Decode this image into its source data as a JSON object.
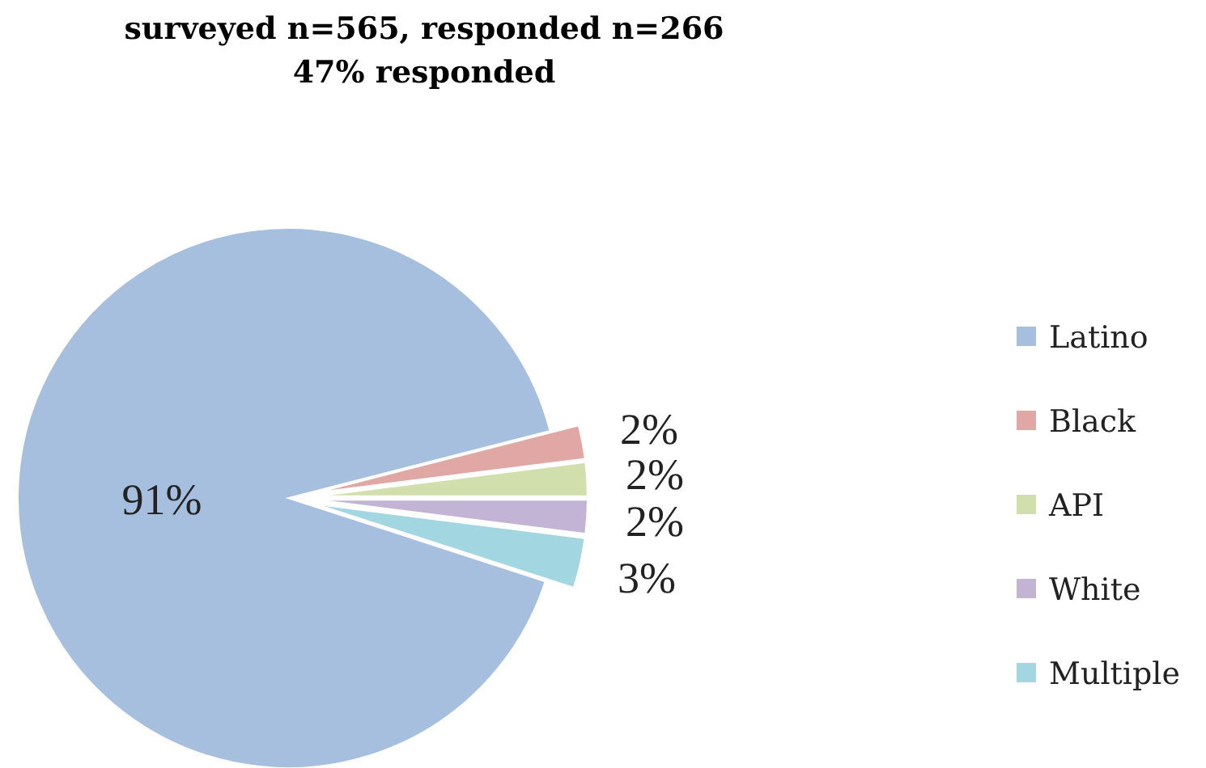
{
  "chart_data": {
    "type": "pie",
    "title": "surveyed n=565, responded n=266\n47% responded",
    "categories": [
      "Latino",
      "Black",
      "API",
      "White",
      "Multiple"
    ],
    "values": [
      91,
      2,
      2,
      2,
      3
    ],
    "colors": [
      "#a7bfdf",
      "#e0a7a5",
      "#d1dfad",
      "#c3b3d5",
      "#a2d6e1"
    ],
    "value_labels": [
      "91%",
      "2%",
      "2%",
      "2%",
      "3%"
    ],
    "legend": "right"
  }
}
